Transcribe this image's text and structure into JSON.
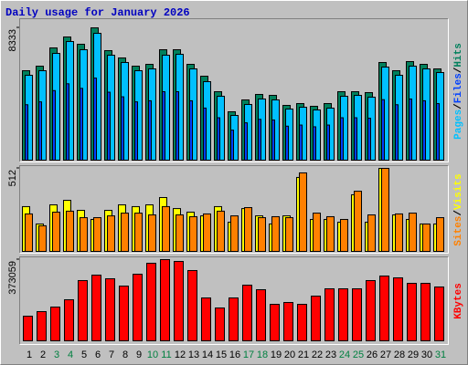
{
  "chart_data": {
    "type": "bar",
    "title": "Daily usage for January 2026",
    "categories": [
      "1",
      "2",
      "3",
      "4",
      "5",
      "6",
      "7",
      "8",
      "9",
      "10",
      "11",
      "12",
      "13",
      "14",
      "15",
      "16",
      "17",
      "18",
      "19",
      "20",
      "21",
      "22",
      "23",
      "24",
      "25",
      "26",
      "27",
      "28",
      "29",
      "30",
      "31"
    ],
    "category_colors": [
      "#000000",
      "#000000",
      "#008040",
      "#008040",
      "#000000",
      "#000000",
      "#000000",
      "#000000",
      "#000000",
      "#008040",
      "#008040",
      "#000000",
      "#000000",
      "#000000",
      "#000000",
      "#000000",
      "#008040",
      "#008040",
      "#000000",
      "#000000",
      "#000000",
      "#000000",
      "#000000",
      "#008040",
      "#008040",
      "#000000",
      "#000000",
      "#000000",
      "#000000",
      "#000000",
      "#008040"
    ],
    "legend_separator": "/",
    "panels": [
      {
        "ylim": [
          0,
          8333
        ],
        "yticks": [
          8333
        ],
        "series": [
          {
            "name": "Hits",
            "color": "#00805c",
            "values": [
              5632,
              5919,
              7069,
              7758,
              7299,
              8333,
              6896,
              6437,
              5919,
              6034,
              6954,
              6954,
              6034,
              5287,
              4310,
              3046,
              3793,
              4138,
              4080,
              3448,
              3563,
              3391,
              3563,
              4310,
              4310,
              4253,
              6149,
              5632,
              6207,
              6034,
              5747
            ]
          },
          {
            "name": "Files",
            "color": "#0040ff",
            "values": [
              3490,
              3670,
              4380,
              4810,
              4520,
              5170,
              4280,
              3990,
              3670,
              3740,
              4310,
              4310,
              3740,
              3280,
              2670,
              1890,
              2350,
              2570,
              2530,
              2140,
              2210,
              2100,
              2210,
              2670,
              2670,
              2640,
              3810,
              3490,
              3850,
              3740,
              3560
            ]
          },
          {
            "name": "Pages",
            "color": "#00c0ff",
            "values": [
              5345,
              5632,
              6724,
              7471,
              6954,
              7988,
              6609,
              6150,
              5632,
              5747,
              6609,
              6667,
              5747,
              4942,
              4023,
              2816,
              3506,
              3851,
              3793,
              3218,
              3333,
              3161,
              3276,
              4023,
              4080,
              3966,
              5862,
              5345,
              5920,
              5747,
              5517
            ]
          }
        ]
      },
      {
        "ylim": [
          0,
          512
        ],
        "yticks": [
          512
        ],
        "series": [
          {
            "name": "Visits",
            "color": "#ffff00",
            "values": [
              276,
              169,
              287,
              315,
              253,
              197,
              253,
              287,
              276,
              287,
              332,
              264,
              242,
              219,
              276,
              180,
              264,
              219,
              169,
              219,
              456,
              197,
              197,
              180,
              349,
              180,
              512,
              225,
              197,
              169,
              169
            ]
          },
          {
            "name": "Sites",
            "color": "#ff8000",
            "values": [
              231,
              158,
              242,
              248,
              208,
              208,
              219,
              236,
              236,
              225,
              276,
              225,
              214,
              231,
              248,
              219,
              270,
              208,
              214,
              208,
              484,
              236,
              214,
              197,
              371,
              225,
              512,
              231,
              236,
              169,
              208
            ]
          }
        ]
      },
      {
        "ylim": [
          0,
          373059
        ],
        "yticks": [
          373059
        ],
        "series": [
          {
            "name": "KBytes",
            "color": "#ff0000",
            "values": [
              113184,
              134144,
              155104,
              188640,
              276672,
              301824,
              285056,
              251520,
              306016,
              356320,
              373059,
              364704,
              322784,
              197024,
              150912,
              197024,
              255712,
              234752,
              167680,
              176064,
              167680,
              205408,
              238944,
              238944,
              238944,
              276672,
              297632,
              289248,
              264096,
              264096,
              247328
            ]
          }
        ]
      }
    ]
  }
}
